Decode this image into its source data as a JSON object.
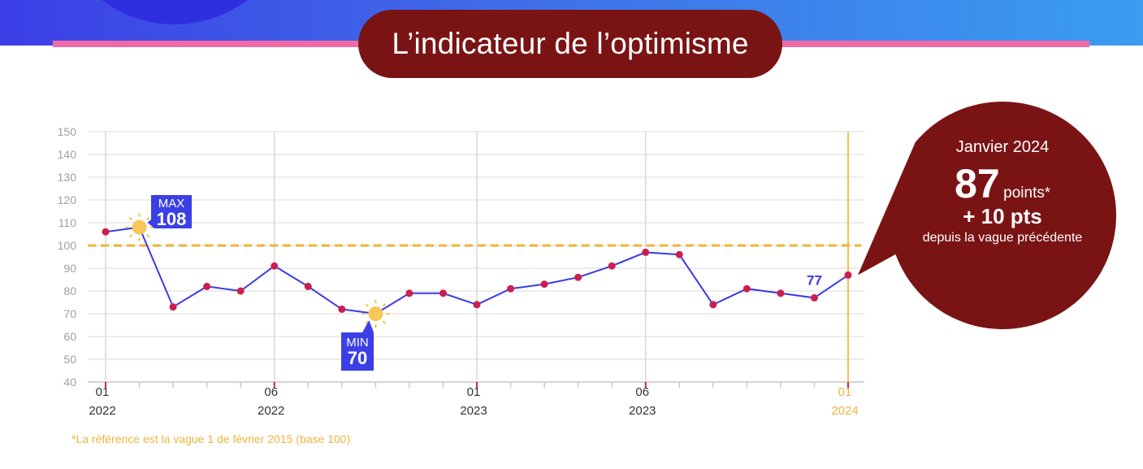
{
  "header": {
    "title": "L’indicateur de l’optimisme"
  },
  "colors": {
    "banner_start": "#3b3fe6",
    "banner_end": "#3a9df0",
    "accent_pink": "#f06aa6",
    "title_bg": "#7a1414",
    "line": "#3a3ae6",
    "marker": "#cc1f4f",
    "reference_line": "#f2b233",
    "label_box": "#3b3fe6"
  },
  "chart_data": {
    "type": "line",
    "series": [
      {
        "values": [
          106,
          108,
          73,
          82,
          80,
          91,
          82,
          72,
          70,
          79,
          79,
          74,
          81,
          83,
          86,
          91,
          97,
          96,
          74,
          81,
          79,
          77,
          87
        ]
      }
    ],
    "x_ticks": [
      {
        "month": "01",
        "year": "2022"
      },
      {
        "month": "06",
        "year": "2022"
      },
      {
        "month": "01",
        "year": "2023"
      },
      {
        "month": "06",
        "year": "2023"
      },
      {
        "month": "01",
        "year": "2024"
      }
    ],
    "y_ticks": [
      "150",
      "140",
      "130",
      "120",
      "110",
      "100",
      "90",
      "80",
      "70",
      "60",
      "50",
      "40"
    ],
    "ylim": [
      40,
      150
    ],
    "reference_value": 100,
    "grid": true,
    "annotations": {
      "max": {
        "label": "MAX",
        "value": "108"
      },
      "min": {
        "label": "MIN",
        "value": "70"
      },
      "previous": "77"
    }
  },
  "callout": {
    "date": "Janvier 2024",
    "value": "87",
    "unit": "points",
    "star": "*",
    "delta": "+ 10 pts",
    "since": "depuis la vague précédente"
  },
  "footnote": "*La référence est la vague 1 de février 2015 (base 100)"
}
